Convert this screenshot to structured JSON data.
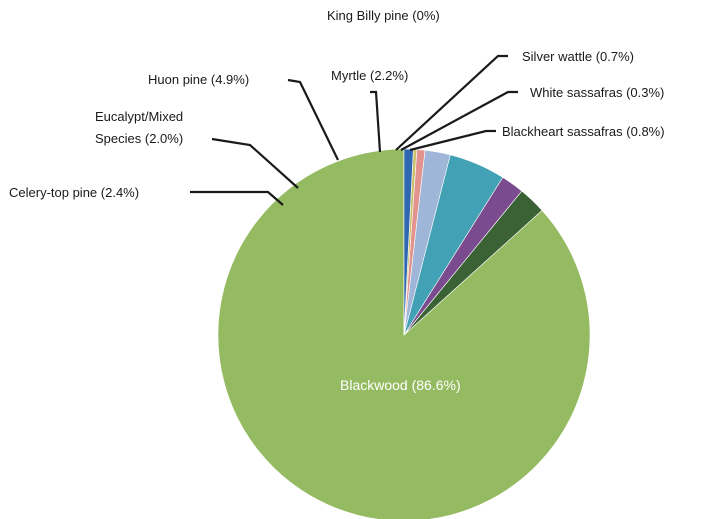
{
  "chart_data": {
    "type": "pie",
    "title": "",
    "start": "12 o'clock",
    "direction": "counterclockwise",
    "slices": [
      {
        "name": "Blackwood",
        "value": 86.6,
        "label": "Blackwood (86.6%)",
        "color": "#95bb62"
      },
      {
        "name": "Celery-top pine",
        "value": 2.4,
        "label": "Celery-top pine (2.4%)",
        "color": "#3a6234"
      },
      {
        "name": "Eucalypt/Mixed Species",
        "value": 2.0,
        "label_lines": [
          "Eucalypt/Mixed",
          "Species (2.0%)"
        ],
        "color": "#7a4b8f"
      },
      {
        "name": "Huon pine",
        "value": 4.9,
        "label": "Huon pine (4.9%)",
        "color": "#42a1b4"
      },
      {
        "name": "Myrtle",
        "value": 2.2,
        "label": "Myrtle (2.2%)",
        "color": "#9fb6d9"
      },
      {
        "name": "King Billy pine",
        "value": 0.0,
        "label": "King Billy pine (0%)",
        "color": "#d9d9d9"
      },
      {
        "name": "Silver wattle",
        "value": 0.7,
        "label": "Silver wattle (0.7%)",
        "color": "#e3938d"
      },
      {
        "name": "White sassafras",
        "value": 0.3,
        "label": "White sassafras (0.3%)",
        "color": "#c8c06a"
      },
      {
        "name": "Blackheart sassafras",
        "value": 0.8,
        "label": "Blackheart sassafras (0.8%)",
        "color": "#2f67b0"
      }
    ]
  }
}
